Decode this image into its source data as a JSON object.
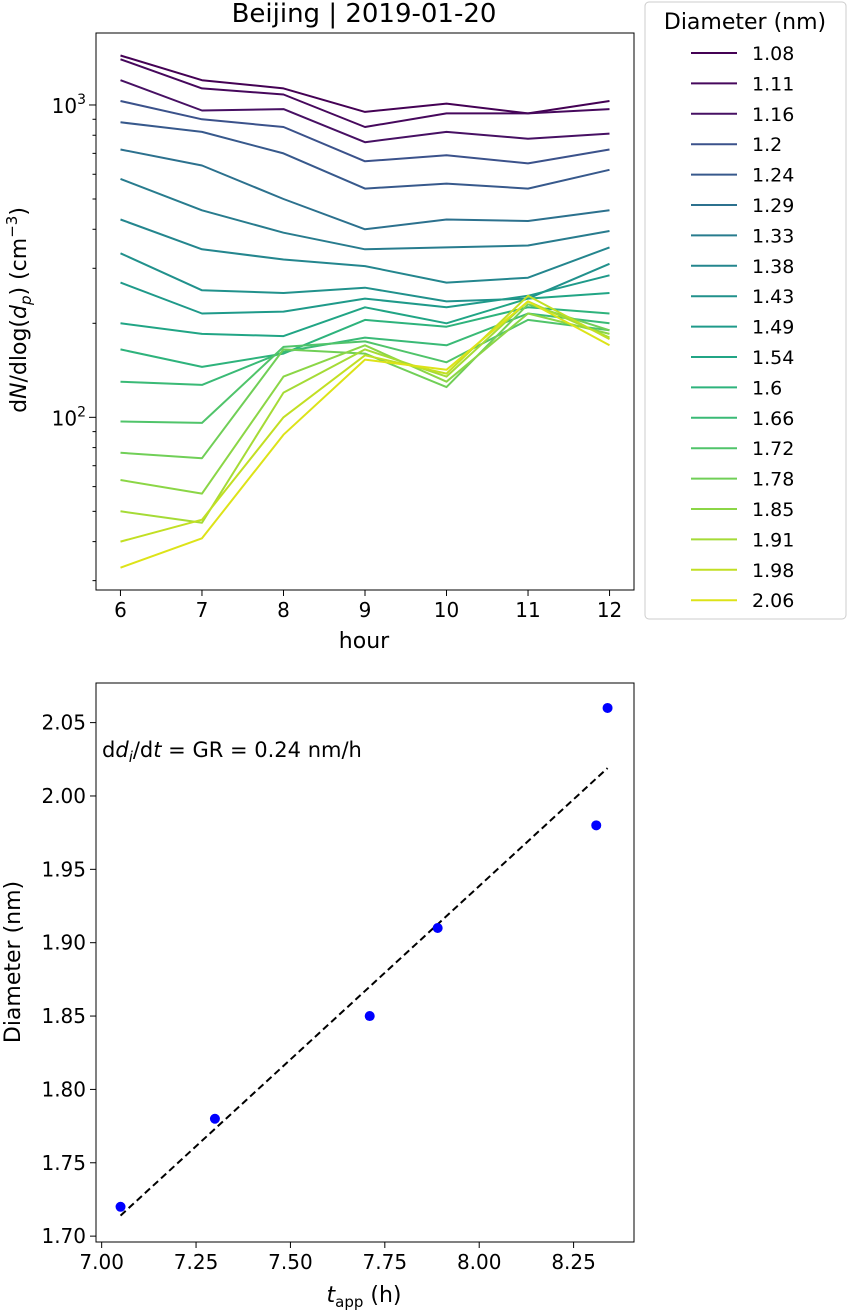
{
  "chart_data": [
    {
      "type": "line",
      "title": "Beijing | 2019-01-20",
      "xlabel": "hour",
      "ylabel": "dN/dlog(d_p) (cm^-3)",
      "ylabel_parts": {
        "pre": "d",
        "n": "N",
        "mid": "/dlog(",
        "dp": "d",
        "dp_sub": "p",
        "post": ") (cm",
        "sup": "−3",
        "end": ")"
      },
      "yscale": "log",
      "xlim": [
        5.7,
        12.3
      ],
      "ylim": [
        28,
        1700
      ],
      "x_ticks": [
        6,
        7,
        8,
        9,
        10,
        11,
        12
      ],
      "y_major_ticks": [
        100,
        1000
      ],
      "y_major_labels": [
        {
          "base": "10",
          "exp": "2"
        },
        {
          "base": "10",
          "exp": "3"
        }
      ],
      "x": [
        6,
        7,
        8,
        9,
        10,
        11,
        12
      ],
      "legend": {
        "title": "Diameter (nm)",
        "position": "outside-right"
      },
      "series": [
        {
          "name": "1.08",
          "color": "#440154",
          "values": [
            1440,
            1200,
            1130,
            950,
            1010,
            940,
            1030
          ]
        },
        {
          "name": "1.11",
          "color": "#46085c",
          "values": [
            1400,
            1130,
            1080,
            850,
            940,
            940,
            970
          ]
        },
        {
          "name": "1.16",
          "color": "#471063",
          "values": [
            1200,
            960,
            970,
            760,
            820,
            780,
            810
          ]
        },
        {
          "name": "1.2",
          "color": "#3b528b",
          "values": [
            1030,
            900,
            850,
            660,
            690,
            650,
            720
          ]
        },
        {
          "name": "1.24",
          "color": "#37598c",
          "values": [
            880,
            820,
            700,
            540,
            560,
            540,
            620
          ]
        },
        {
          "name": "1.29",
          "color": "#2c718e",
          "values": [
            720,
            640,
            500,
            400,
            430,
            425,
            460
          ]
        },
        {
          "name": "1.33",
          "color": "#287c8e",
          "values": [
            580,
            460,
            390,
            345,
            350,
            355,
            395
          ]
        },
        {
          "name": "1.38",
          "color": "#24868e",
          "values": [
            430,
            345,
            320,
            305,
            270,
            280,
            350
          ]
        },
        {
          "name": "1.43",
          "color": "#21918c",
          "values": [
            335,
            255,
            250,
            260,
            235,
            240,
            310
          ]
        },
        {
          "name": "1.49",
          "color": "#1f9a8a",
          "values": [
            270,
            215,
            218,
            240,
            225,
            245,
            285
          ]
        },
        {
          "name": "1.54",
          "color": "#21a585",
          "values": [
            200,
            185,
            182,
            225,
            200,
            240,
            250
          ]
        },
        {
          "name": "1.6",
          "color": "#2eb37c",
          "values": [
            165,
            145,
            160,
            205,
            195,
            225,
            215
          ]
        },
        {
          "name": "1.66",
          "color": "#3aba76",
          "values": [
            130,
            127,
            162,
            180,
            170,
            215,
            200
          ]
        },
        {
          "name": "1.72",
          "color": "#50c46a",
          "values": [
            97,
            96,
            168,
            175,
            150,
            205,
            190
          ]
        },
        {
          "name": "1.78",
          "color": "#70cf57",
          "values": [
            77,
            74,
            165,
            160,
            125,
            230,
            190
          ]
        },
        {
          "name": "1.85",
          "color": "#8bd646",
          "values": [
            63,
            57,
            135,
            170,
            130,
            215,
            185
          ]
        },
        {
          "name": "1.91",
          "color": "#a5db36",
          "values": [
            50,
            46,
            120,
            165,
            135,
            235,
            180
          ]
        },
        {
          "name": "1.98",
          "color": "#c2df23",
          "values": [
            40,
            47,
            100,
            158,
            138,
            245,
            178
          ]
        },
        {
          "name": "2.06",
          "color": "#dde318",
          "values": [
            33,
            41,
            88,
            153,
            142,
            235,
            170
          ]
        }
      ]
    },
    {
      "type": "scatter",
      "title": "",
      "xlabel": "t_app (h)",
      "xlabel_parts": {
        "t": "t",
        "sub": "app",
        "post": " (h)"
      },
      "ylabel": "Diameter (nm)",
      "xlim": [
        6.985,
        8.41
      ],
      "ylim": [
        1.696,
        2.077
      ],
      "x_ticks": [
        7.0,
        7.25,
        7.5,
        7.75,
        8.0,
        8.25
      ],
      "x_tick_labels": [
        "7.00",
        "7.25",
        "7.50",
        "7.75",
        "8.00",
        "8.25"
      ],
      "y_ticks": [
        1.7,
        1.75,
        1.8,
        1.85,
        1.9,
        1.95,
        2.0,
        2.05
      ],
      "y_tick_labels": [
        "1.70",
        "1.75",
        "1.80",
        "1.85",
        "1.90",
        "1.95",
        "2.00",
        "2.05"
      ],
      "points": {
        "color": "#0000ff",
        "x": [
          7.05,
          7.3,
          7.71,
          7.89,
          8.31,
          8.34
        ],
        "y": [
          1.72,
          1.78,
          1.85,
          1.91,
          1.98,
          2.06
        ]
      },
      "fit": {
        "color": "#000000",
        "style": "dashed",
        "x": [
          7.05,
          8.34
        ],
        "y": [
          1.714,
          2.019
        ]
      },
      "annotation": {
        "d": "d",
        "sub": "i",
        "mid": "/d",
        "t": "t",
        "rest": " = GR = 0.24 nm/h"
      }
    }
  ]
}
